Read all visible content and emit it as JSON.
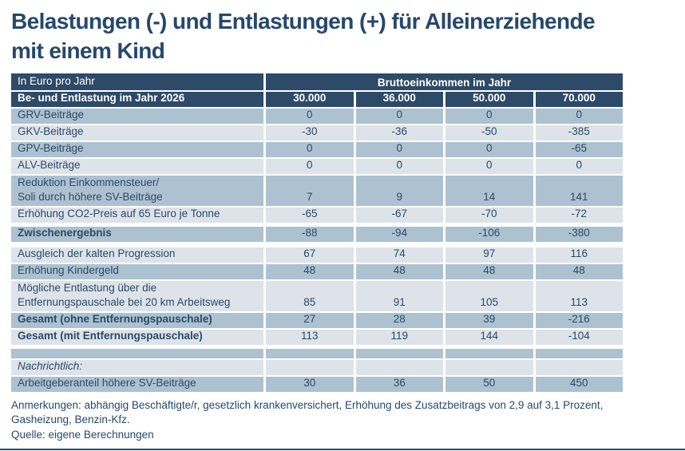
{
  "title": {
    "line1": "Belastungen (-) und Entlastungen (+) für Alleinerziehende",
    "line2": "mit einem Kind"
  },
  "chart_data": {
    "type": "table",
    "title": "Belastungen (-) und Entlastungen (+) für Alleinerziehende mit einem Kind",
    "unit_label": "In Euro pro Jahr",
    "group_header": "Bruttoeinkommen im Jahr",
    "row_header": "Be- und Entlastung im Jahr 2026",
    "columns": [
      "30.000",
      "36.000",
      "50.000",
      "70.000"
    ],
    "rows": [
      {
        "label": "GRV-Beiträge",
        "values": [
          "0",
          "0",
          "0",
          "0"
        ]
      },
      {
        "label": "GKV-Beiträge",
        "values": [
          "-30",
          "-36",
          "-50",
          "-385"
        ]
      },
      {
        "label": "GPV-Beiträge",
        "values": [
          "0",
          "0",
          "0",
          "-65"
        ]
      },
      {
        "label": "ALV-Beiträge",
        "values": [
          "0",
          "0",
          "0",
          "0"
        ]
      },
      {
        "label": "Reduktion Einkommensteuer/",
        "label2": "Soli durch höhere SV-Beiträge",
        "values": [
          "7",
          "9",
          "14",
          "141"
        ]
      },
      {
        "label": "Erhöhung CO2-Preis auf 65 Euro je Tonne",
        "values": [
          "-65",
          "-67",
          "-70",
          "-72"
        ]
      },
      {
        "label": "Zwischenergebnis",
        "values": [
          "-88",
          "-94",
          "-106",
          "-380"
        ]
      },
      {
        "label": "Ausgleich der kalten Progression",
        "values": [
          "67",
          "74",
          "97",
          "116"
        ]
      },
      {
        "label": "Erhöhung Kindergeld",
        "values": [
          "48",
          "48",
          "48",
          "48"
        ]
      },
      {
        "label": "Mögliche Entlastung über die",
        "label2": "Entfernungspauschale bei 20 km Arbeitsweg",
        "values": [
          "85",
          "91",
          "105",
          "113"
        ]
      },
      {
        "label": "Gesamt (ohne Entfernungspauschale)",
        "values": [
          "27",
          "28",
          "39",
          "-216"
        ]
      },
      {
        "label": "Gesamt (mit Entfernungspauschale)",
        "values": [
          "113",
          "119",
          "144",
          "-104"
        ]
      },
      {
        "label": "",
        "values": [
          "",
          "",
          "",
          ""
        ]
      },
      {
        "label": "Nachrichtlich:",
        "values": [
          "",
          "",
          "",
          ""
        ]
      },
      {
        "label": "Arbeitgeberanteil höhere SV-Beiträge",
        "values": [
          "30",
          "36",
          "50",
          "450"
        ]
      }
    ]
  },
  "footer": {
    "annotations": "Anmerkungen: abhängig Beschäftigte/r, gesetzlich krankenversichert, Erhöhung des Zusatzbeitrags von 2,9 auf 3,1 Prozent, Gasheizung, Benzin-Kfz.",
    "source": "Quelle: eigene Berechnungen"
  },
  "colors": {
    "header_navy": "#2D4A68",
    "row_dark": "#ADC2D1",
    "row_light": "#DDE3E9",
    "text_navy": "#26486B"
  }
}
